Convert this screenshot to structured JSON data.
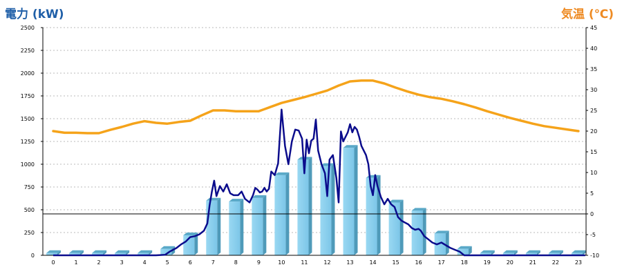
{
  "chart_data": {
    "type": "bar+line",
    "title_left": "電力 (kW)",
    "title_right": "気温 (℃)",
    "categories": [
      "0",
      "1",
      "2",
      "3",
      "4",
      "5",
      "6",
      "7",
      "8",
      "9",
      "10",
      "11",
      "12",
      "13",
      "14",
      "15",
      "16",
      "17",
      "18",
      "19",
      "20",
      "21",
      "22",
      "23"
    ],
    "y_left": {
      "min": 0,
      "max": 2500,
      "ticks": [
        0,
        250,
        500,
        750,
        1000,
        1250,
        1500,
        1750,
        2000,
        2250,
        2500
      ]
    },
    "y_right": {
      "min": -10,
      "max": 45,
      "ticks": [
        -10,
        -5,
        0,
        5,
        10,
        15,
        20,
        25,
        30,
        35,
        40,
        45
      ]
    },
    "grid": true,
    "bars": {
      "color": "#87ceeb",
      "values": [
        25,
        25,
        25,
        25,
        25,
        70,
        220,
        600,
        590,
        630,
        880,
        1050,
        980,
        1180,
        850,
        580,
        490,
        240,
        70,
        25,
        25,
        25,
        25,
        25
      ]
    },
    "power_line": {
      "color": "#0b0c8c",
      "points": [
        [
          0,
          0
        ],
        [
          0.5,
          0
        ],
        [
          1,
          0
        ],
        [
          1.5,
          0
        ],
        [
          2,
          0
        ],
        [
          2.5,
          0
        ],
        [
          3,
          0
        ],
        [
          3.5,
          0
        ],
        [
          4,
          0
        ],
        [
          4.5,
          0
        ],
        [
          4.9,
          5
        ],
        [
          5.1,
          40
        ],
        [
          5.4,
          80
        ],
        [
          5.6,
          120
        ],
        [
          5.8,
          150
        ],
        [
          6,
          200
        ],
        [
          6.2,
          210
        ],
        [
          6.4,
          230
        ],
        [
          6.6,
          270
        ],
        [
          6.75,
          350
        ],
        [
          6.85,
          550
        ],
        [
          6.95,
          700
        ],
        [
          7.05,
          820
        ],
        [
          7.15,
          650
        ],
        [
          7.3,
          760
        ],
        [
          7.45,
          700
        ],
        [
          7.6,
          780
        ],
        [
          7.75,
          680
        ],
        [
          7.9,
          660
        ],
        [
          8.1,
          660
        ],
        [
          8.25,
          700
        ],
        [
          8.4,
          620
        ],
        [
          8.6,
          580
        ],
        [
          8.75,
          660
        ],
        [
          8.85,
          740
        ],
        [
          8.95,
          720
        ],
        [
          9.05,
          690
        ],
        [
          9.15,
          700
        ],
        [
          9.25,
          740
        ],
        [
          9.35,
          700
        ],
        [
          9.45,
          730
        ],
        [
          9.55,
          920
        ],
        [
          9.7,
          880
        ],
        [
          9.85,
          1010
        ],
        [
          10,
          1600
        ],
        [
          10.15,
          1200
        ],
        [
          10.3,
          1000
        ],
        [
          10.45,
          1250
        ],
        [
          10.6,
          1380
        ],
        [
          10.75,
          1370
        ],
        [
          10.9,
          1280
        ],
        [
          11,
          900
        ],
        [
          11.1,
          1270
        ],
        [
          11.2,
          1120
        ],
        [
          11.3,
          1260
        ],
        [
          11.4,
          1280
        ],
        [
          11.5,
          1490
        ],
        [
          11.6,
          1150
        ],
        [
          11.75,
          1000
        ],
        [
          11.9,
          900
        ],
        [
          12,
          650
        ],
        [
          12.1,
          1050
        ],
        [
          12.25,
          1100
        ],
        [
          12.4,
          850
        ],
        [
          12.5,
          580
        ],
        [
          12.6,
          1360
        ],
        [
          12.7,
          1250
        ],
        [
          12.8,
          1300
        ],
        [
          12.9,
          1350
        ],
        [
          13,
          1440
        ],
        [
          13.1,
          1350
        ],
        [
          13.2,
          1410
        ],
        [
          13.3,
          1380
        ],
        [
          13.4,
          1300
        ],
        [
          13.5,
          1200
        ],
        [
          13.6,
          1150
        ],
        [
          13.7,
          1100
        ],
        [
          13.8,
          1000
        ],
        [
          13.9,
          760
        ],
        [
          14,
          660
        ],
        [
          14.1,
          880
        ],
        [
          14.2,
          760
        ],
        [
          14.35,
          640
        ],
        [
          14.5,
          560
        ],
        [
          14.65,
          620
        ],
        [
          14.8,
          560
        ],
        [
          14.95,
          530
        ],
        [
          15.1,
          420
        ],
        [
          15.25,
          380
        ],
        [
          15.4,
          360
        ],
        [
          15.55,
          340
        ],
        [
          15.7,
          300
        ],
        [
          15.85,
          280
        ],
        [
          16,
          290
        ],
        [
          16.1,
          270
        ],
        [
          16.25,
          210
        ],
        [
          16.4,
          180
        ],
        [
          16.6,
          140
        ],
        [
          16.8,
          120
        ],
        [
          17,
          140
        ],
        [
          17.2,
          110
        ],
        [
          17.4,
          80
        ],
        [
          17.6,
          60
        ],
        [
          17.8,
          40
        ],
        [
          18,
          0
        ],
        [
          18.5,
          0
        ],
        [
          19,
          0
        ],
        [
          19.5,
          0
        ],
        [
          20,
          0
        ],
        [
          20.5,
          0
        ],
        [
          21,
          0
        ],
        [
          21.5,
          0
        ],
        [
          22,
          0
        ],
        [
          22.5,
          0
        ],
        [
          23,
          0
        ],
        [
          23.3,
          0
        ]
      ]
    },
    "temp_line": {
      "color": "#f5a31a",
      "points": [
        [
          0,
          20.0
        ],
        [
          0.5,
          19.6
        ],
        [
          1,
          19.6
        ],
        [
          1.5,
          19.5
        ],
        [
          2,
          19.5
        ],
        [
          2.5,
          20.3
        ],
        [
          3,
          21.0
        ],
        [
          3.5,
          21.8
        ],
        [
          4,
          22.4
        ],
        [
          4.5,
          22.0
        ],
        [
          5,
          21.8
        ],
        [
          5.5,
          22.2
        ],
        [
          6,
          22.5
        ],
        [
          6.5,
          23.8
        ],
        [
          7,
          25.0
        ],
        [
          7.5,
          25.0
        ],
        [
          8,
          24.8
        ],
        [
          8.5,
          24.8
        ],
        [
          9,
          24.8
        ],
        [
          9.5,
          25.8
        ],
        [
          10,
          26.8
        ],
        [
          10.5,
          27.5
        ],
        [
          11,
          28.2
        ],
        [
          11.5,
          29.0
        ],
        [
          12,
          29.8
        ],
        [
          12.5,
          31.0
        ],
        [
          13,
          32.0
        ],
        [
          13.5,
          32.2
        ],
        [
          14,
          32.2
        ],
        [
          14.5,
          31.5
        ],
        [
          15,
          30.5
        ],
        [
          15.5,
          29.6
        ],
        [
          16,
          28.8
        ],
        [
          16.5,
          28.2
        ],
        [
          17,
          27.8
        ],
        [
          17.5,
          27.2
        ],
        [
          18,
          26.5
        ],
        [
          18.5,
          25.7
        ],
        [
          19,
          24.8
        ],
        [
          19.5,
          24.0
        ],
        [
          20,
          23.2
        ],
        [
          20.5,
          22.5
        ],
        [
          21,
          21.8
        ],
        [
          21.5,
          21.2
        ],
        [
          22,
          20.8
        ],
        [
          22.5,
          20.4
        ],
        [
          23,
          20.0
        ]
      ]
    }
  }
}
